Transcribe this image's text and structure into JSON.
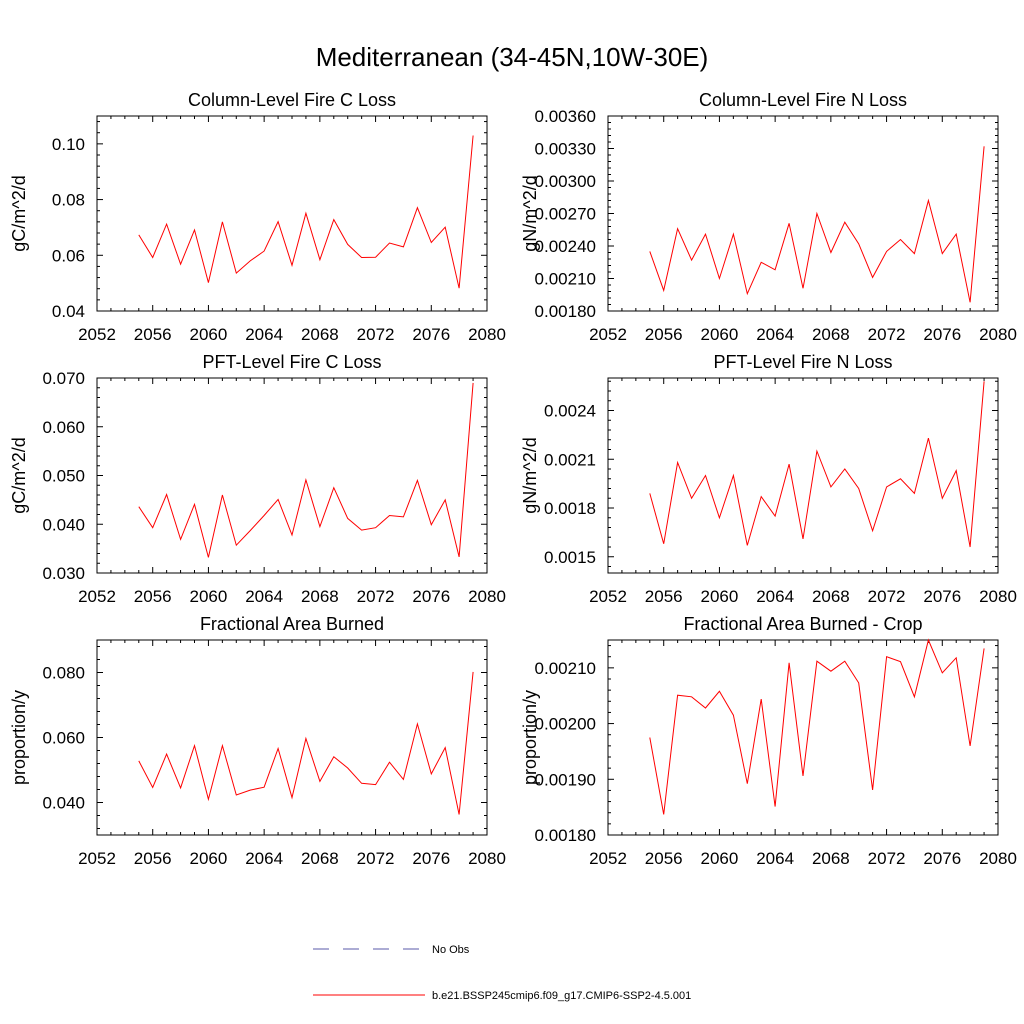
{
  "figure": {
    "title": "Mediterranean (34-45N,10W-30E)"
  },
  "legend": {
    "entries": [
      {
        "label": "No Obs",
        "color": "#5a5aa8",
        "dash": "dashed"
      },
      {
        "label": "b.e21.BSSP245cmip6.f09_g17.CMIP6-SSP2-4.5.001",
        "color": "#ff0000",
        "dash": "solid"
      }
    ]
  },
  "chart_data": [
    {
      "type": "line",
      "title": "Column-Level Fire C Loss",
      "ylabel": "gC/m^2/d",
      "xlim": [
        2052,
        2080
      ],
      "ylim": [
        0.04,
        0.11
      ],
      "xticks": [
        "2052",
        "2056",
        "2060",
        "2064",
        "2068",
        "2072",
        "2076",
        "2080"
      ],
      "yticks": [
        "0.04",
        "0.06",
        "0.08",
        "0.10"
      ],
      "x": [
        2055,
        2056,
        2057,
        2058,
        2059,
        2060,
        2061,
        2062,
        2063,
        2064,
        2065,
        2066,
        2067,
        2068,
        2069,
        2070,
        2071,
        2072,
        2073,
        2074,
        2075,
        2076,
        2077,
        2078,
        2079
      ],
      "series": [
        {
          "values": [
            0.0673,
            0.0592,
            0.0712,
            0.0568,
            0.0691,
            0.0502,
            0.072,
            0.0536,
            0.058,
            0.0615,
            0.0721,
            0.0564,
            0.0751,
            0.0584,
            0.0728,
            0.0639,
            0.0592,
            0.0593,
            0.0644,
            0.063,
            0.0771,
            0.0646,
            0.0701,
            0.0482,
            0.103
          ]
        }
      ]
    },
    {
      "type": "line",
      "title": "Column-Level Fire N Loss",
      "ylabel": "gN/m^2/d",
      "xlim": [
        2052,
        2080
      ],
      "ylim": [
        0.0018,
        0.0036
      ],
      "xticks": [
        "2052",
        "2056",
        "2060",
        "2064",
        "2068",
        "2072",
        "2076",
        "2080"
      ],
      "yticks": [
        "0.00180",
        "0.00210",
        "0.00240",
        "0.00270",
        "0.00300",
        "0.00330",
        "0.00360"
      ],
      "x": [
        2055,
        2056,
        2057,
        2058,
        2059,
        2060,
        2061,
        2062,
        2063,
        2064,
        2065,
        2066,
        2067,
        2068,
        2069,
        2070,
        2071,
        2072,
        2073,
        2074,
        2075,
        2076,
        2077,
        2078,
        2079
      ],
      "series": [
        {
          "values": [
            0.00235,
            0.00199,
            0.00256,
            0.00227,
            0.00251,
            0.0021,
            0.00251,
            0.00196,
            0.00225,
            0.00218,
            0.00261,
            0.00201,
            0.0027,
            0.00234,
            0.00262,
            0.00242,
            0.00211,
            0.00235,
            0.00246,
            0.00233,
            0.00282,
            0.00233,
            0.00251,
            0.00188,
            0.00332
          ]
        }
      ]
    },
    {
      "type": "line",
      "title": "PFT-Level Fire C Loss",
      "ylabel": "gC/m^2/d",
      "xlim": [
        2052,
        2080
      ],
      "ylim": [
        0.03,
        0.07
      ],
      "xticks": [
        "2052",
        "2056",
        "2060",
        "2064",
        "2068",
        "2072",
        "2076",
        "2080"
      ],
      "yticks": [
        "0.030",
        "0.040",
        "0.050",
        "0.060",
        "0.070"
      ],
      "x": [
        2055,
        2056,
        2057,
        2058,
        2059,
        2060,
        2061,
        2062,
        2063,
        2064,
        2065,
        2066,
        2067,
        2068,
        2069,
        2070,
        2071,
        2072,
        2073,
        2074,
        2075,
        2076,
        2077,
        2078,
        2079
      ],
      "series": [
        {
          "values": [
            0.0436,
            0.0393,
            0.0461,
            0.0369,
            0.0441,
            0.0332,
            0.046,
            0.0357,
            0.0387,
            0.0418,
            0.0451,
            0.0378,
            0.0491,
            0.0395,
            0.0475,
            0.0412,
            0.0388,
            0.0393,
            0.0418,
            0.0415,
            0.049,
            0.0399,
            0.045,
            0.0333,
            0.069
          ]
        }
      ]
    },
    {
      "type": "line",
      "title": "PFT-Level Fire N Loss",
      "ylabel": "gN/m^2/d",
      "xlim": [
        2052,
        2080
      ],
      "ylim": [
        0.0014,
        0.0026
      ],
      "xticks": [
        "2052",
        "2056",
        "2060",
        "2064",
        "2068",
        "2072",
        "2076",
        "2080"
      ],
      "yticks": [
        "0.0015",
        "0.0018",
        "0.0021",
        "0.0024"
      ],
      "x": [
        2055,
        2056,
        2057,
        2058,
        2059,
        2060,
        2061,
        2062,
        2063,
        2064,
        2065,
        2066,
        2067,
        2068,
        2069,
        2070,
        2071,
        2072,
        2073,
        2074,
        2075,
        2076,
        2077,
        2078,
        2079
      ],
      "series": [
        {
          "values": [
            0.00189,
            0.00158,
            0.00208,
            0.00186,
            0.002,
            0.00174,
            0.002,
            0.00157,
            0.00187,
            0.00175,
            0.00207,
            0.00161,
            0.00215,
            0.00193,
            0.00204,
            0.00192,
            0.00166,
            0.00193,
            0.00198,
            0.00189,
            0.00223,
            0.00186,
            0.00203,
            0.00156,
            0.00258
          ]
        }
      ]
    },
    {
      "type": "line",
      "title": "Fractional Area Burned",
      "ylabel": "proportion/y",
      "xlim": [
        2052,
        2080
      ],
      "ylim": [
        0.03,
        0.09
      ],
      "xticks": [
        "2052",
        "2056",
        "2060",
        "2064",
        "2068",
        "2072",
        "2076",
        "2080"
      ],
      "yticks": [
        "0.040",
        "0.060",
        "0.080"
      ],
      "x": [
        2055,
        2056,
        2057,
        2058,
        2059,
        2060,
        2061,
        2062,
        2063,
        2064,
        2065,
        2066,
        2067,
        2068,
        2069,
        2070,
        2071,
        2072,
        2073,
        2074,
        2075,
        2076,
        2077,
        2078,
        2079
      ],
      "series": [
        {
          "values": [
            0.0528,
            0.0446,
            0.0549,
            0.0445,
            0.0575,
            0.041,
            0.0575,
            0.0423,
            0.0438,
            0.0447,
            0.0566,
            0.0415,
            0.0597,
            0.0465,
            0.0541,
            0.0506,
            0.0459,
            0.0455,
            0.0524,
            0.0471,
            0.0642,
            0.0488,
            0.0569,
            0.0363,
            0.0802
          ]
        }
      ]
    },
    {
      "type": "line",
      "title": "Fractional Area Burned - Crop",
      "ylabel": "proportion/y",
      "xlim": [
        2052,
        2080
      ],
      "ylim": [
        0.0018,
        0.00215
      ],
      "xticks": [
        "2052",
        "2056",
        "2060",
        "2064",
        "2068",
        "2072",
        "2076",
        "2080"
      ],
      "yticks": [
        "0.00180",
        "0.00190",
        "0.00200",
        "0.00210"
      ],
      "x": [
        2055,
        2056,
        2057,
        2058,
        2059,
        2060,
        2061,
        2062,
        2063,
        2064,
        2065,
        2066,
        2067,
        2068,
        2069,
        2070,
        2071,
        2072,
        2073,
        2074,
        2075,
        2076,
        2077,
        2078,
        2079
      ],
      "series": [
        {
          "values": [
            0.001975,
            0.001837,
            0.002051,
            0.002048,
            0.002028,
            0.002058,
            0.002015,
            0.001892,
            0.002044,
            0.001851,
            0.002109,
            0.001906,
            0.002112,
            0.002094,
            0.002112,
            0.002073,
            0.001881,
            0.00212,
            0.002111,
            0.002048,
            0.00215,
            0.002091,
            0.002118,
            0.00196,
            0.002135
          ]
        }
      ]
    }
  ]
}
